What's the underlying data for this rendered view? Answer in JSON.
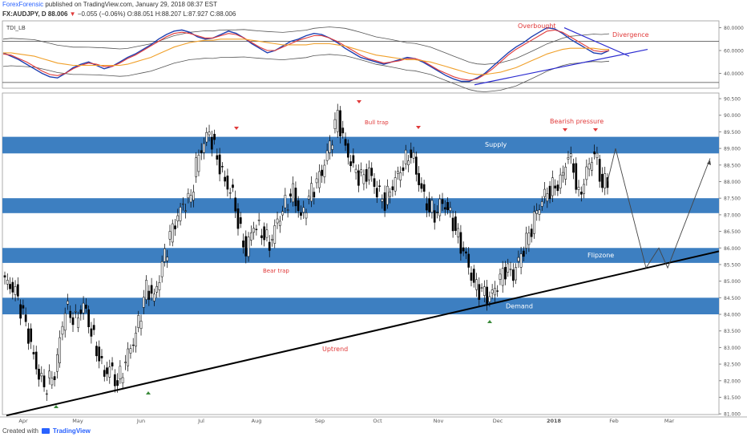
{
  "header": {
    "author": "ForexForensic",
    "published_text": "published on TradingView.com, January 29, 2018 08:37 EST",
    "symbol": "FX:AUDJPY, D",
    "last": "88.006",
    "change": "−0.055 (−0.06%)",
    "ohlc": "O:88.051  H:88.207  L:87.927  C:88.006"
  },
  "footer": {
    "created_with": "Created with",
    "brand": "TradingView"
  },
  "colors": {
    "zone": "#3d7fc1",
    "candle_up": "#ffffff",
    "candle_down": "#000000",
    "rsi": "#1f3fb0",
    "signal": "#e03a3a",
    "base": "#f0a02a",
    "band": "#555555",
    "annotation": "#e03a3a",
    "trendline": "#000000",
    "divergence_line": "#2a2ad0"
  },
  "chart_data": [
    {
      "type": "line",
      "title": "TDI_LB",
      "y_ticks": [
        "80.0000",
        "60.0000",
        "40.0000"
      ],
      "ylim": [
        27,
        86
      ],
      "levels": [
        68,
        32
      ],
      "series": [
        {
          "name": "RSI",
          "values": [
            58,
            55,
            52,
            48,
            44,
            40,
            37,
            36,
            40,
            45,
            48,
            50,
            47,
            44,
            46,
            50,
            54,
            57,
            61,
            65,
            70,
            74,
            77,
            78,
            76,
            72,
            70,
            71,
            74,
            77,
            75,
            71,
            66,
            62,
            58,
            60,
            64,
            68,
            70,
            73,
            75,
            74,
            71,
            67,
            62,
            58,
            54,
            52,
            50,
            48,
            50,
            52,
            54,
            53,
            50,
            46,
            42,
            38,
            35,
            33,
            33,
            36,
            40,
            46,
            52,
            58,
            63,
            67,
            72,
            76,
            80,
            79,
            75,
            70,
            66,
            62,
            58,
            57,
            60
          ]
        },
        {
          "name": "Signal",
          "values": [
            57,
            56,
            53,
            50,
            46,
            42,
            39,
            38,
            40,
            44,
            47,
            49,
            48,
            46,
            46,
            49,
            53,
            56,
            60,
            64,
            68,
            72,
            75,
            76,
            75,
            73,
            71,
            71,
            73,
            75,
            74,
            71,
            67,
            63,
            60,
            60,
            63,
            66,
            69,
            71,
            73,
            73,
            71,
            68,
            64,
            60,
            56,
            53,
            51,
            49,
            50,
            51,
            53,
            53,
            51,
            47,
            43,
            40,
            37,
            35,
            34,
            35,
            39,
            44,
            50,
            56,
            61,
            65,
            69,
            73,
            77,
            78,
            76,
            72,
            68,
            64,
            60,
            59,
            60
          ]
        },
        {
          "name": "Base",
          "values": [
            58,
            58,
            57,
            56,
            55,
            53,
            51,
            49,
            48,
            47,
            47,
            47,
            47,
            47,
            47,
            47,
            48,
            50,
            52,
            54,
            57,
            60,
            63,
            65,
            67,
            68,
            69,
            69,
            70,
            70,
            70,
            70,
            69,
            68,
            67,
            66,
            65,
            65,
            65,
            65,
            66,
            66,
            66,
            65,
            64,
            62,
            60,
            58,
            56,
            55,
            54,
            53,
            52,
            52,
            51,
            50,
            48,
            46,
            44,
            42,
            40,
            39,
            39,
            40,
            41,
            43,
            45,
            48,
            51,
            54,
            57,
            59,
            61,
            62,
            62,
            62,
            62,
            61,
            61
          ]
        }
      ],
      "annotations": [
        "Overbought",
        "Divergence"
      ]
    },
    {
      "type": "candlestick",
      "symbol": "FX:AUDJPY",
      "interval": "D",
      "x_tick_labels": [
        "Apr",
        "May",
        "Jun",
        "Jul",
        "Aug",
        "Sep",
        "Oct",
        "Nov",
        "Dec",
        "2018",
        "Feb",
        "Mar"
      ],
      "y_ticks": [
        "90.500",
        "90.000",
        "89.500",
        "89.000",
        "88.500",
        "88.000",
        "87.500",
        "87.000",
        "86.500",
        "86.000",
        "85.500",
        "85.000",
        "84.500",
        "84.000",
        "83.500",
        "83.000",
        "82.500",
        "82.000",
        "81.500",
        "81.000"
      ],
      "ylim": [
        80.98,
        90.67
      ],
      "anchors": [
        [
          0,
          85.0
        ],
        [
          4,
          84.7
        ],
        [
          8,
          83.7
        ],
        [
          12,
          82.4
        ],
        [
          15,
          81.8
        ],
        [
          19,
          82.2
        ],
        [
          23,
          84.2
        ],
        [
          27,
          83.8
        ],
        [
          30,
          84.3
        ],
        [
          34,
          83.2
        ],
        [
          38,
          82.2
        ],
        [
          40,
          82.4
        ],
        [
          43,
          81.9
        ],
        [
          47,
          82.8
        ],
        [
          50,
          83.4
        ],
        [
          54,
          84.8
        ],
        [
          57,
          84.5
        ],
        [
          61,
          85.8
        ],
        [
          64,
          86.6
        ],
        [
          68,
          87.3
        ],
        [
          71,
          87.5
        ],
        [
          73,
          88.5
        ],
        [
          75,
          89.0
        ],
        [
          78,
          89.5
        ],
        [
          81,
          88.7
        ],
        [
          84,
          88.0
        ],
        [
          87,
          87.6
        ],
        [
          90,
          86.4
        ],
        [
          92,
          85.9
        ],
        [
          95,
          86.7
        ],
        [
          98,
          86.5
        ],
        [
          101,
          86.1
        ],
        [
          104,
          86.8
        ],
        [
          107,
          87.3
        ],
        [
          110,
          87.7
        ],
        [
          113,
          86.9
        ],
        [
          117,
          87.7
        ],
        [
          121,
          88.3
        ],
        [
          124,
          89.1
        ],
        [
          127,
          90.0
        ],
        [
          130,
          89.0
        ],
        [
          133,
          88.4
        ],
        [
          136,
          88.1
        ],
        [
          139,
          88.3
        ],
        [
          142,
          87.7
        ],
        [
          145,
          87.4
        ],
        [
          148,
          87.9
        ],
        [
          152,
          88.5
        ],
        [
          155,
          88.9
        ],
        [
          158,
          88.0
        ],
        [
          161,
          87.3
        ],
        [
          164,
          87.0
        ],
        [
          167,
          87.4
        ],
        [
          170,
          87.0
        ],
        [
          173,
          86.3
        ],
        [
          176,
          85.7
        ],
        [
          179,
          84.9
        ],
        [
          182,
          84.7
        ],
        [
          185,
          84.5
        ],
        [
          188,
          84.9
        ],
        [
          191,
          85.4
        ],
        [
          194,
          85.2
        ],
        [
          197,
          85.8
        ],
        [
          200,
          86.4
        ],
        [
          203,
          87.1
        ],
        [
          206,
          87.6
        ],
        [
          209,
          87.8
        ],
        [
          212,
          88.0
        ],
        [
          215,
          88.8
        ],
        [
          217,
          88.4
        ],
        [
          219,
          87.5
        ],
        [
          222,
          88.3
        ],
        [
          225,
          88.9
        ],
        [
          228,
          87.9
        ],
        [
          230,
          88.0
        ]
      ],
      "projection": [
        [
          88.0,
          0
        ],
        [
          89.0,
          3
        ],
        [
          85.4,
          10
        ],
        [
          86.0,
          13
        ],
        [
          85.4,
          15
        ],
        [
          88.7,
          26
        ]
      ],
      "zones": [
        {
          "label": "Supply",
          "from": 88.85,
          "to": 89.35
        },
        {
          "label": "",
          "from": 87.05,
          "to": 87.5
        },
        {
          "label": "Flipzone",
          "from": 85.55,
          "to": 86.0
        },
        {
          "label": "Demand",
          "from": 84.0,
          "to": 84.5
        }
      ],
      "trendline": {
        "label": "Uptrend",
        "from": {
          "x": "start",
          "y": 80.95
        },
        "to": {
          "x": "end",
          "y": 85.9
        }
      },
      "annotations": [
        "Bull trap",
        "Bearish pressure",
        "Bear trap"
      ]
    }
  ]
}
